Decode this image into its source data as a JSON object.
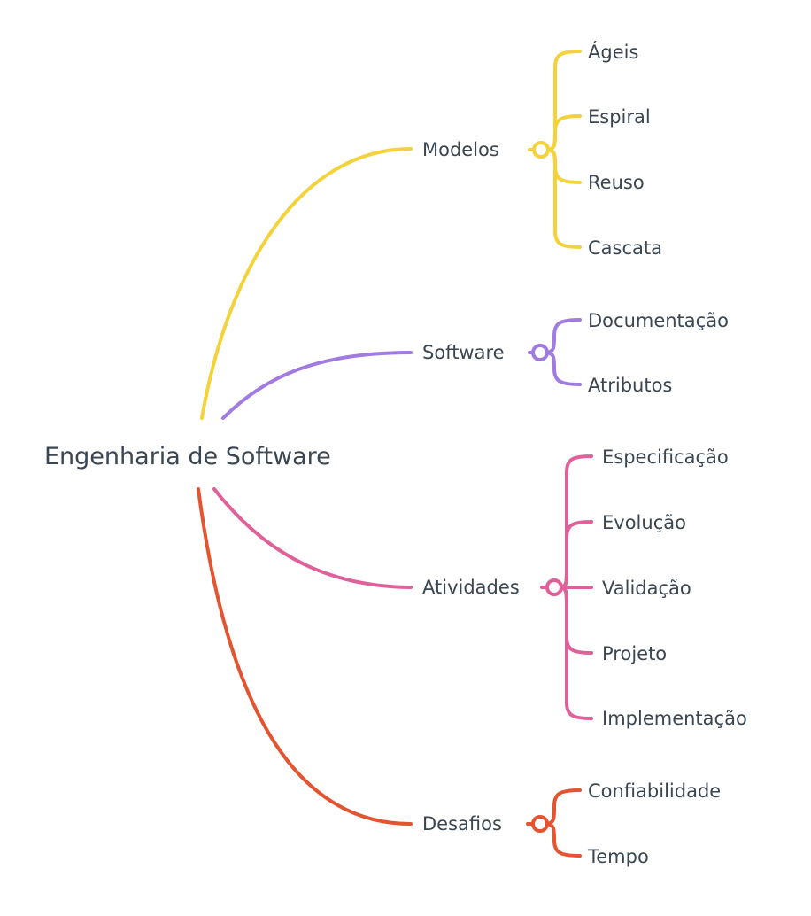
{
  "root": {
    "label": "Engenharia de Software"
  },
  "branches": [
    {
      "label": "Modelos",
      "color": "#f3d23a",
      "children": [
        "Ágeis",
        "Espiral",
        "Reuso",
        "Cascata"
      ]
    },
    {
      "label": "Software",
      "color": "#a07be0",
      "children": [
        "Documentação",
        "Atributos"
      ]
    },
    {
      "label": "Atividades",
      "color": "#e0609a",
      "children": [
        "Especificação",
        "Evolução",
        "Validação",
        "Projeto",
        "Implementação"
      ]
    },
    {
      "label": "Desafios",
      "color": "#e35430",
      "children": [
        "Confiabilidade",
        "Tempo"
      ]
    }
  ]
}
